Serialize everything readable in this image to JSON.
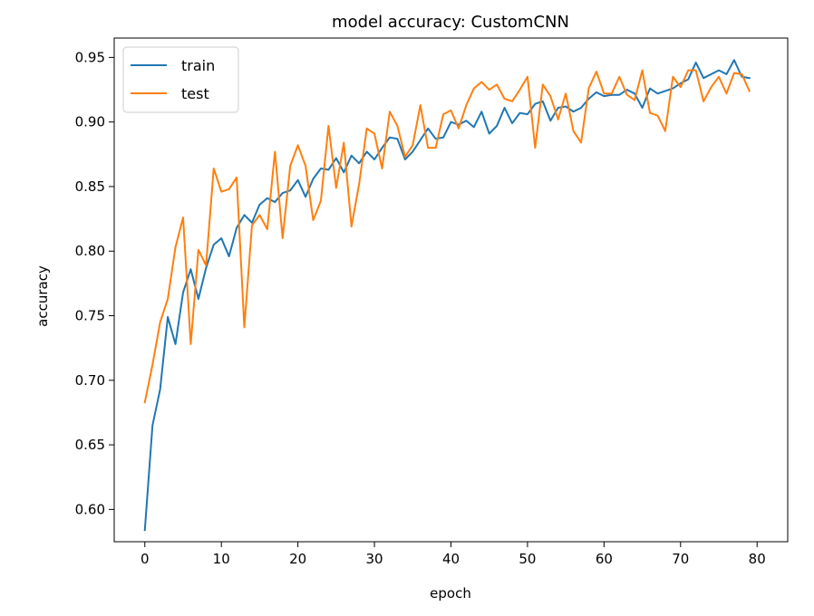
{
  "chart_data": {
    "type": "line",
    "title": "model accuracy: CustomCNN",
    "xlabel": "epoch",
    "ylabel": "accuracy",
    "xlim": [
      -4,
      84
    ],
    "ylim": [
      0.575,
      0.965
    ],
    "xticks": [
      0,
      10,
      20,
      30,
      40,
      50,
      60,
      70,
      80
    ],
    "yticks": [
      0.6,
      0.65,
      0.7,
      0.75,
      0.8,
      0.85,
      0.9,
      0.95
    ],
    "grid": false,
    "legend_position": "top-left",
    "series": [
      {
        "name": "train",
        "color": "#1f77b4",
        "values": [
          0.584,
          0.665,
          0.693,
          0.749,
          0.728,
          0.768,
          0.786,
          0.763,
          0.787,
          0.805,
          0.81,
          0.796,
          0.818,
          0.828,
          0.822,
          0.836,
          0.841,
          0.838,
          0.845,
          0.847,
          0.855,
          0.842,
          0.856,
          0.864,
          0.863,
          0.872,
          0.861,
          0.874,
          0.868,
          0.877,
          0.871,
          0.88,
          0.888,
          0.887,
          0.871,
          0.877,
          0.886,
          0.895,
          0.887,
          0.888,
          0.9,
          0.898,
          0.901,
          0.896,
          0.908,
          0.891,
          0.897,
          0.911,
          0.899,
          0.907,
          0.906,
          0.914,
          0.916,
          0.901,
          0.911,
          0.912,
          0.908,
          0.911,
          0.918,
          0.923,
          0.92,
          0.921,
          0.921,
          0.925,
          0.922,
          0.911,
          0.926,
          0.922,
          0.924,
          0.926,
          0.93,
          0.933,
          0.946,
          0.934,
          0.937,
          0.94,
          0.937,
          0.948,
          0.935,
          0.934
        ]
      },
      {
        "name": "test",
        "color": "#ff7f0e",
        "values": [
          0.683,
          0.712,
          0.745,
          0.763,
          0.803,
          0.826,
          0.728,
          0.801,
          0.789,
          0.864,
          0.846,
          0.848,
          0.857,
          0.741,
          0.82,
          0.828,
          0.817,
          0.877,
          0.81,
          0.866,
          0.882,
          0.866,
          0.824,
          0.839,
          0.897,
          0.849,
          0.884,
          0.819,
          0.852,
          0.895,
          0.891,
          0.864,
          0.908,
          0.897,
          0.873,
          0.882,
          0.913,
          0.88,
          0.88,
          0.906,
          0.909,
          0.895,
          0.913,
          0.926,
          0.931,
          0.925,
          0.929,
          0.918,
          0.916,
          0.925,
          0.935,
          0.88,
          0.929,
          0.92,
          0.902,
          0.922,
          0.893,
          0.884,
          0.926,
          0.939,
          0.922,
          0.922,
          0.935,
          0.921,
          0.917,
          0.94,
          0.907,
          0.905,
          0.893,
          0.935,
          0.927,
          0.94,
          0.94,
          0.916,
          0.927,
          0.935,
          0.922,
          0.938,
          0.937,
          0.924
        ]
      }
    ]
  }
}
